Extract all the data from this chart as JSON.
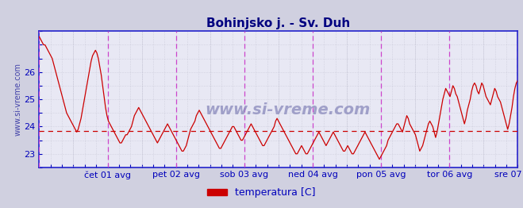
{
  "title": "Bohinjsko j. - Sv. Duh",
  "title_color": "#000080",
  "title_fontsize": 11,
  "ylabel_text": "www.si-vreme.com",
  "ylabel_color": "#4444aa",
  "ylabel_fontsize": 7,
  "bg_color": "#d0d0e0",
  "plot_bg_color": "#e8e8f4",
  "line_color": "#cc0000",
  "avg_line_color": "#cc0000",
  "avg_line_value": 23.85,
  "xlim": [
    0,
    336
  ],
  "ylim": [
    22.6,
    27.5
  ],
  "yticks": [
    23,
    24,
    25,
    26
  ],
  "ytick_color": "#0000bb",
  "ytick_fontsize": 8,
  "grid_color": "#c0c0d0",
  "axis_color": "#2222cc",
  "xtick_labels": [
    "čet 01 avg",
    "pet 02 avg",
    "sob 03 avg",
    "ned 04 avg",
    "pon 05 avg",
    "tor 06 avg",
    "sre 07 avg"
  ],
  "xtick_positions": [
    48,
    96,
    144,
    192,
    240,
    288,
    336
  ],
  "xtick_color": "#0000bb",
  "xtick_fontsize": 8,
  "vline_color_day": "#cc44cc",
  "vline_color_mid": "#bbbbcc",
  "legend_label": "temperatura [C]",
  "legend_color": "#cc0000",
  "legend_fontsize": 9,
  "watermark": "www.si-vreme.com",
  "watermark_color": "#8888bb",
  "watermark_fontsize": 14,
  "data_values": [
    27.3,
    27.2,
    27.1,
    27.0,
    27.0,
    26.9,
    26.8,
    26.7,
    26.6,
    26.5,
    26.3,
    26.1,
    25.9,
    25.7,
    25.5,
    25.3,
    25.1,
    24.9,
    24.7,
    24.5,
    24.4,
    24.3,
    24.2,
    24.1,
    24.0,
    23.9,
    23.8,
    23.9,
    24.1,
    24.3,
    24.6,
    24.9,
    25.2,
    25.5,
    25.8,
    26.1,
    26.4,
    26.6,
    26.7,
    26.8,
    26.7,
    26.5,
    26.2,
    25.9,
    25.5,
    25.1,
    24.7,
    24.4,
    24.2,
    24.1,
    24.0,
    23.9,
    23.8,
    23.7,
    23.6,
    23.5,
    23.4,
    23.4,
    23.5,
    23.6,
    23.7,
    23.7,
    23.8,
    23.9,
    24.0,
    24.2,
    24.4,
    24.5,
    24.6,
    24.7,
    24.6,
    24.5,
    24.4,
    24.3,
    24.2,
    24.1,
    24.0,
    23.9,
    23.8,
    23.7,
    23.6,
    23.5,
    23.4,
    23.5,
    23.6,
    23.7,
    23.8,
    23.9,
    24.0,
    24.1,
    24.0,
    23.9,
    23.8,
    23.7,
    23.6,
    23.5,
    23.4,
    23.3,
    23.2,
    23.1,
    23.1,
    23.2,
    23.3,
    23.5,
    23.7,
    23.9,
    24.0,
    24.1,
    24.2,
    24.4,
    24.5,
    24.6,
    24.5,
    24.4,
    24.3,
    24.2,
    24.1,
    24.0,
    23.9,
    23.8,
    23.7,
    23.6,
    23.5,
    23.4,
    23.3,
    23.2,
    23.2,
    23.3,
    23.4,
    23.5,
    23.6,
    23.7,
    23.8,
    23.9,
    24.0,
    24.0,
    23.9,
    23.8,
    23.7,
    23.6,
    23.5,
    23.5,
    23.6,
    23.7,
    23.8,
    23.9,
    24.0,
    24.1,
    24.0,
    23.9,
    23.8,
    23.7,
    23.6,
    23.5,
    23.4,
    23.3,
    23.3,
    23.4,
    23.5,
    23.6,
    23.7,
    23.8,
    23.9,
    24.0,
    24.2,
    24.3,
    24.2,
    24.1,
    24.0,
    23.9,
    23.8,
    23.7,
    23.6,
    23.5,
    23.4,
    23.3,
    23.2,
    23.1,
    23.0,
    23.0,
    23.1,
    23.2,
    23.3,
    23.2,
    23.1,
    23.0,
    23.0,
    23.1,
    23.2,
    23.3,
    23.4,
    23.5,
    23.6,
    23.7,
    23.8,
    23.7,
    23.6,
    23.5,
    23.4,
    23.3,
    23.4,
    23.5,
    23.6,
    23.7,
    23.8,
    23.7,
    23.6,
    23.5,
    23.4,
    23.3,
    23.2,
    23.1,
    23.1,
    23.2,
    23.3,
    23.2,
    23.1,
    23.0,
    23.0,
    23.1,
    23.2,
    23.3,
    23.4,
    23.5,
    23.6,
    23.7,
    23.8,
    23.7,
    23.6,
    23.5,
    23.4,
    23.3,
    23.2,
    23.1,
    23.0,
    22.9,
    22.8,
    22.9,
    23.0,
    23.1,
    23.2,
    23.3,
    23.5,
    23.6,
    23.7,
    23.8,
    23.9,
    24.0,
    24.1,
    24.1,
    24.0,
    23.9,
    23.8,
    24.0,
    24.2,
    24.4,
    24.3,
    24.1,
    24.0,
    23.9,
    23.8,
    23.7,
    23.5,
    23.3,
    23.1,
    23.2,
    23.3,
    23.5,
    23.7,
    23.9,
    24.1,
    24.2,
    24.1,
    24.0,
    23.8,
    23.6,
    23.8,
    24.1,
    24.4,
    24.7,
    25.0,
    25.2,
    25.4,
    25.3,
    25.2,
    25.1,
    25.3,
    25.5,
    25.4,
    25.2,
    25.1,
    24.9,
    24.7,
    24.5,
    24.3,
    24.1,
    24.3,
    24.6,
    24.8,
    25.0,
    25.3,
    25.5,
    25.6,
    25.5,
    25.3,
    25.2,
    25.4,
    25.6,
    25.5,
    25.3,
    25.1,
    25.0,
    24.9,
    24.8,
    25.0,
    25.2,
    25.4,
    25.3,
    25.1,
    25.0,
    24.9,
    24.7,
    24.5,
    24.3,
    24.1,
    23.9,
    24.1,
    24.4,
    24.7,
    25.1,
    25.4,
    25.6,
    25.7
  ]
}
